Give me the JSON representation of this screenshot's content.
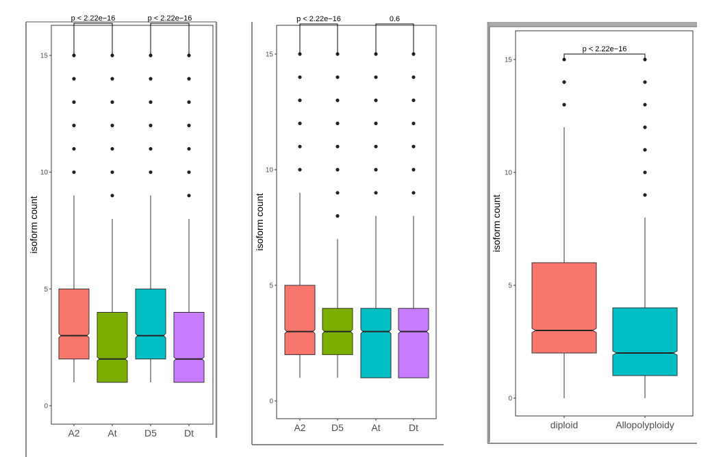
{
  "chart_data": [
    {
      "type": "boxplot",
      "notched": true,
      "ylabel": "isoform  count",
      "ylim": [
        -1,
        16
      ],
      "yticks": [
        0,
        5,
        10,
        15
      ],
      "grid": false,
      "categories": [
        "A2",
        "At",
        "D5",
        "Dt"
      ],
      "colors": [
        "#F8766D",
        "#7CAE00",
        "#00BFC4",
        "#C77CFF"
      ],
      "boxes": [
        {
          "name": "A2",
          "whisker_low": 1,
          "q1": 2,
          "median": 3,
          "q3": 5,
          "whisker_high": 9,
          "outliers": [
            10,
            11,
            12,
            13,
            14,
            15
          ]
        },
        {
          "name": "At",
          "whisker_low": 1,
          "q1": 1,
          "median": 2,
          "q3": 4,
          "whisker_high": 8,
          "outliers": [
            9,
            10,
            11,
            12,
            13,
            14,
            15
          ]
        },
        {
          "name": "D5",
          "whisker_low": 1,
          "q1": 2,
          "median": 3,
          "q3": 5,
          "whisker_high": 9,
          "outliers": [
            10,
            11,
            12,
            13,
            14,
            15
          ]
        },
        {
          "name": "Dt",
          "whisker_low": 1,
          "q1": 1,
          "median": 2,
          "q3": 4,
          "whisker_high": 8,
          "outliers": [
            9,
            10,
            11,
            12,
            13,
            14,
            15
          ]
        }
      ],
      "comparisons": [
        {
          "groups": [
            "A2",
            "At"
          ],
          "label": "p < 2.22e−16"
        },
        {
          "groups": [
            "D5",
            "Dt"
          ],
          "label": "p < 2.22e−16"
        }
      ]
    },
    {
      "type": "boxplot",
      "notched": true,
      "ylabel": "isoform  count",
      "ylim": [
        -1,
        16
      ],
      "yticks": [
        0,
        5,
        10,
        15
      ],
      "grid": false,
      "categories": [
        "A2",
        "D5",
        "At",
        "Dt"
      ],
      "colors": [
        "#F8766D",
        "#7CAE00",
        "#00BFC4",
        "#C77CFF"
      ],
      "boxes": [
        {
          "name": "A2",
          "whisker_low": 1,
          "q1": 2,
          "median": 3,
          "q3": 5,
          "whisker_high": 9,
          "outliers": [
            10,
            11,
            12,
            13,
            14,
            15
          ]
        },
        {
          "name": "D5",
          "whisker_low": 1,
          "q1": 2,
          "median": 3,
          "q3": 4,
          "whisker_high": 7,
          "outliers": [
            8,
            9,
            10,
            11,
            12,
            13,
            14,
            15
          ]
        },
        {
          "name": "At",
          "whisker_low": 1,
          "q1": 1,
          "median": 3,
          "q3": 4,
          "whisker_high": 8,
          "outliers": [
            9,
            10,
            11,
            12,
            13,
            14,
            15
          ]
        },
        {
          "name": "Dt",
          "whisker_low": 1,
          "q1": 1,
          "median": 3,
          "q3": 4,
          "whisker_high": 8,
          "outliers": [
            9,
            10,
            11,
            12,
            13,
            14,
            15
          ]
        }
      ],
      "comparisons": [
        {
          "groups": [
            "A2",
            "D5"
          ],
          "label": "p < 2.22e−16"
        },
        {
          "groups": [
            "At",
            "Dt"
          ],
          "label": "0.6"
        }
      ]
    },
    {
      "type": "boxplot",
      "notched": true,
      "ylabel": "isoform  count",
      "ylim": [
        -1,
        16
      ],
      "yticks": [
        0,
        5,
        10,
        15
      ],
      "grid": false,
      "categories": [
        "diploid",
        "Allopolyploidy"
      ],
      "colors": [
        "#F8766D",
        "#00BFC4"
      ],
      "boxes": [
        {
          "name": "diploid",
          "whisker_low": 0,
          "q1": 2,
          "median": 3,
          "q3": 6,
          "whisker_high": 12,
          "outliers": [
            13,
            14,
            15
          ]
        },
        {
          "name": "Allopolyploidy",
          "whisker_low": 0,
          "q1": 1,
          "median": 2,
          "q3": 4,
          "whisker_high": 8,
          "outliers": [
            9,
            10,
            11,
            12,
            13,
            14,
            15
          ]
        }
      ],
      "comparisons": [
        {
          "groups": [
            "diploid",
            "Allopolyploidy"
          ],
          "label": "p < 2.22e−16"
        }
      ]
    }
  ]
}
